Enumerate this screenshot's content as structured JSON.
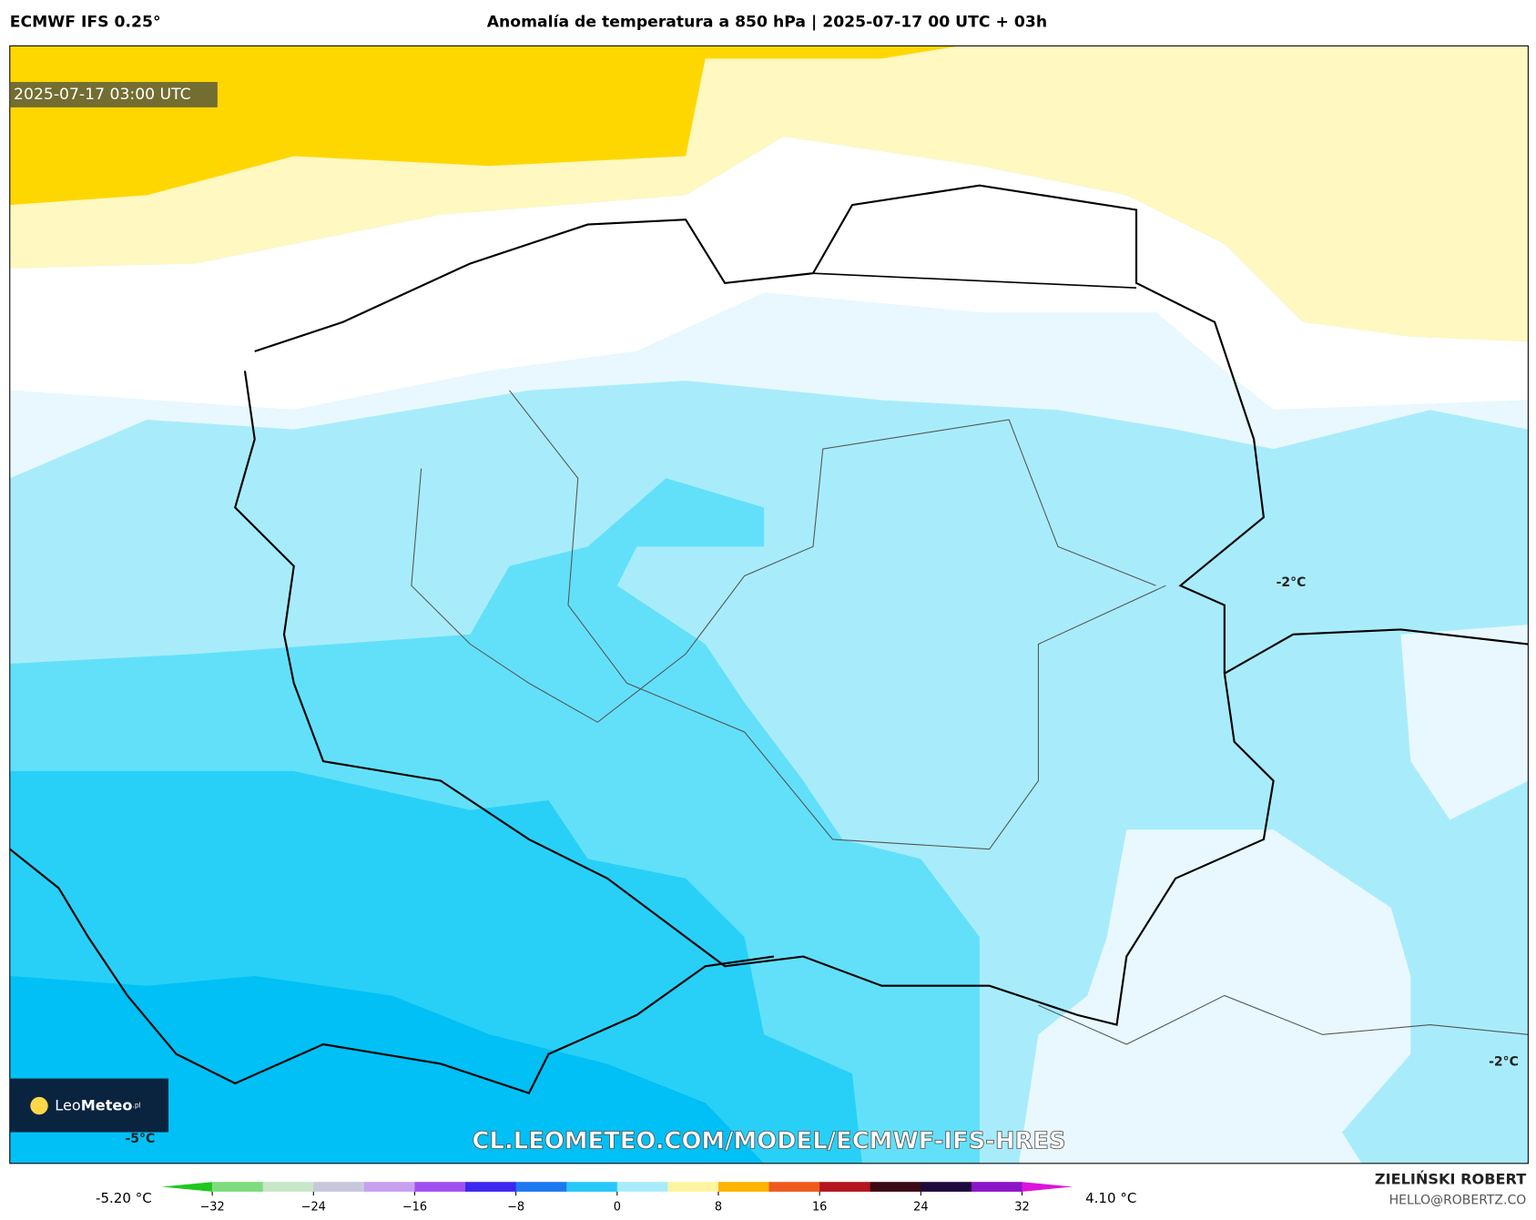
{
  "header": {
    "model": "ECMWF IFS 0.25°",
    "title": "Anomalía de temperatura a 850 hPa | 2025-07-17 00 UTC + 03h"
  },
  "map": {
    "timestamp": "2025-07-17 03:00 UTC",
    "labels": [
      "-2°C",
      "-2°C",
      "-5°C"
    ],
    "watermark": "CL.LEOMETEO.COM/MODEL/ECMWF-IFS-HRES",
    "logo": {
      "name": "Leo",
      "bold": "Meteo",
      "suffix": ".pl"
    }
  },
  "colorbar": {
    "min_label": "-5.20 °C",
    "max_label": "4.10 °C",
    "lim": [
      -36,
      36
    ],
    "ticks": [
      {
        "value": -32,
        "label": "−32"
      },
      {
        "value": -24,
        "label": "−24"
      },
      {
        "value": -16,
        "label": "−16"
      },
      {
        "value": -8,
        "label": "−8"
      },
      0,
      8,
      16,
      24,
      32
    ],
    "colors": [
      "#1ec81e",
      "#7ddc7d",
      "#c8e6c8",
      "#c8c8dc",
      "#c8a0f0",
      "#a050f0",
      "#3c28f0",
      "#1e78f0",
      "#28c8f8",
      "#a8ecfb",
      "#fff4a0",
      "#ffb400",
      "#f05a1e",
      "#b4141e",
      "#3c0a14",
      "#1e0a3c",
      "#8c14c8",
      "#dc14dc"
    ]
  },
  "footer": {
    "author": "ZIELIŃSKI ROBERT",
    "contact": "HELLO@ROBERTZ.CO"
  }
}
